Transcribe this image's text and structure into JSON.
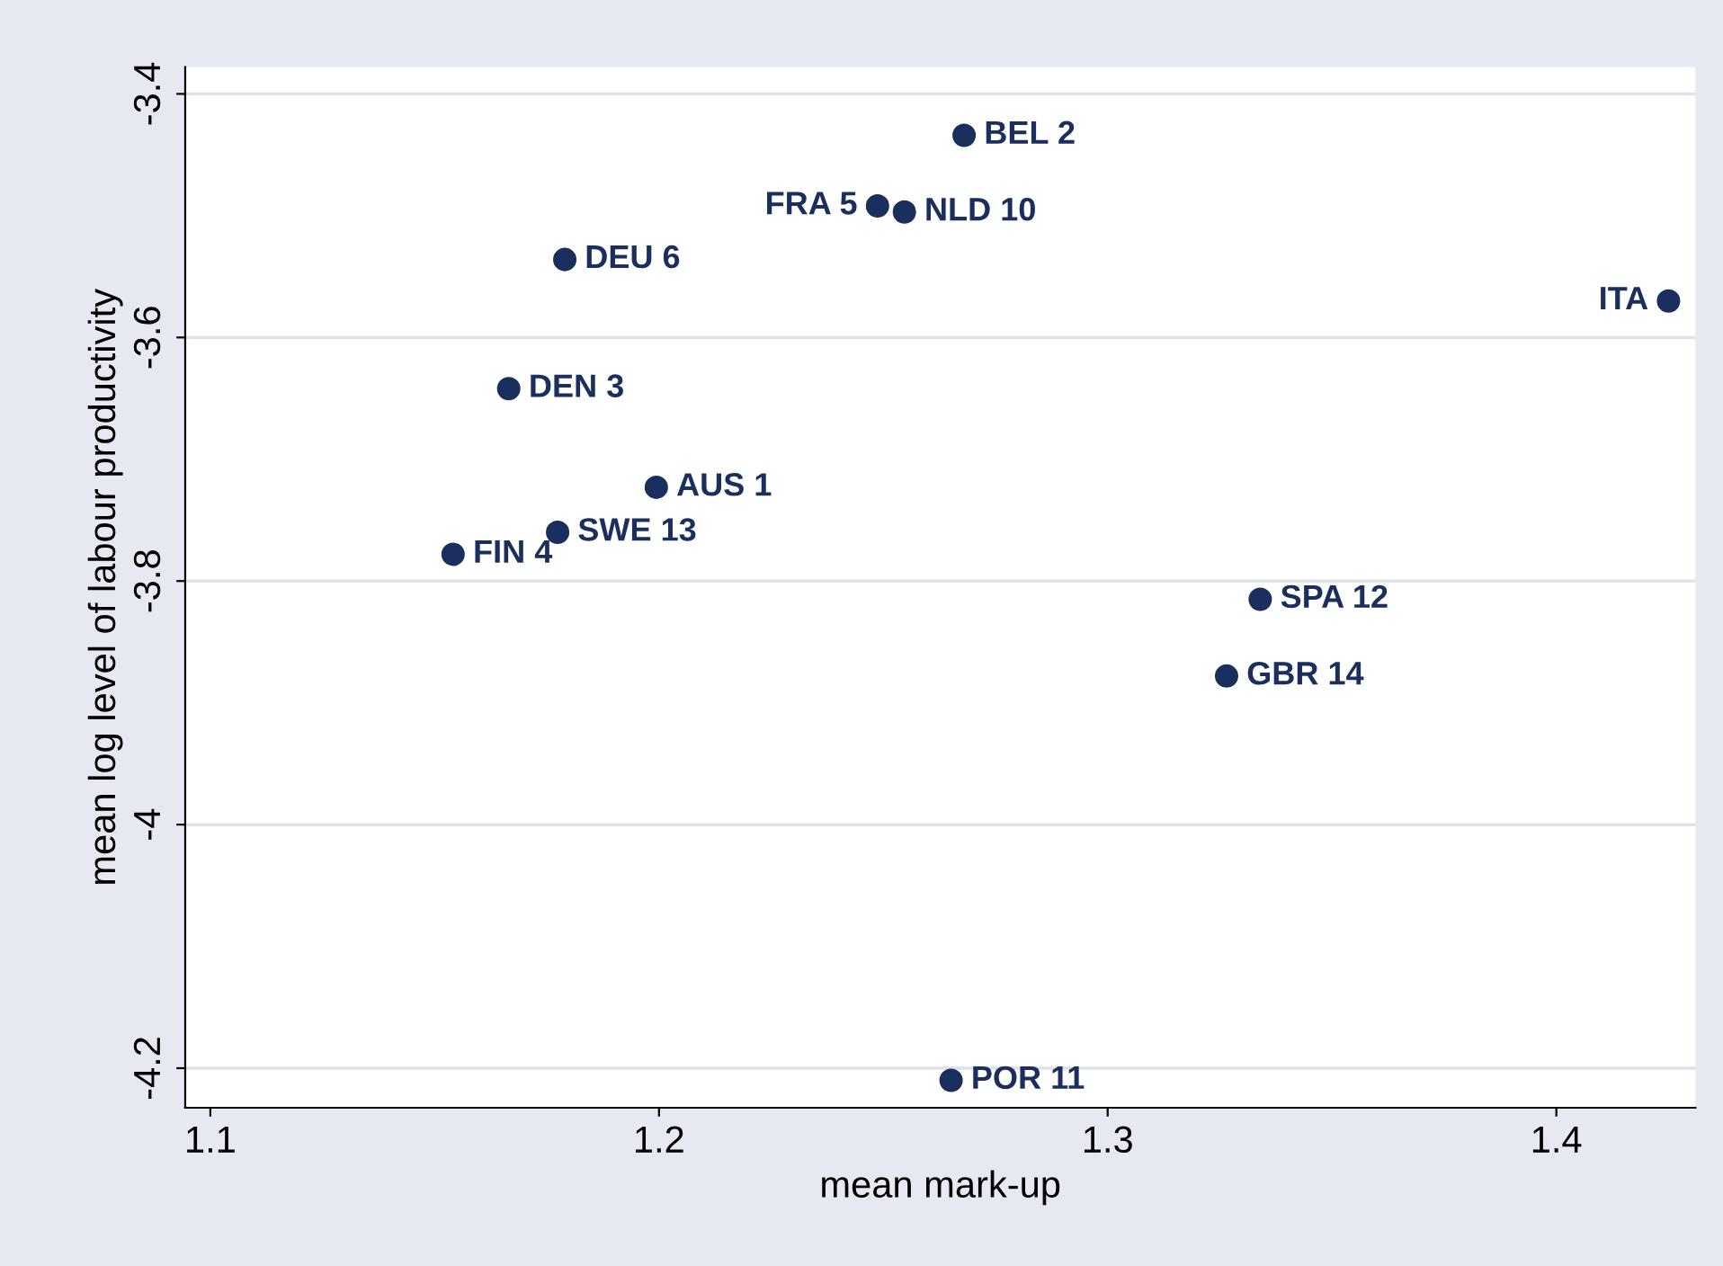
{
  "chart_data": {
    "type": "scatter",
    "xlabel": "mean mark-up",
    "ylabel": "mean log level of labour productivity",
    "x": [
      1.268,
      1.2487,
      1.2547,
      1.179,
      1.425,
      1.1665,
      1.1994,
      1.1774,
      1.1541,
      1.334,
      1.3265,
      1.2651
    ],
    "values": [
      -3.434,
      -3.492,
      -3.497,
      -3.536,
      -3.57,
      -3.642,
      -3.723,
      -3.76,
      -3.778,
      -3.815,
      -3.878,
      -4.21
    ],
    "color": "#1a2f5e",
    "marker": "circle",
    "xlim": [
      1.0944,
      1.431
    ],
    "ylim": [
      -4.2325,
      -3.378
    ],
    "xticks": [
      1.1,
      1.2,
      1.3,
      1.4
    ],
    "yticks": [
      -4.2,
      -4,
      -3.8,
      -3.6,
      -3.4
    ],
    "grid": "y",
    "annotations": [
      {
        "text": "BEL 2",
        "x": 1.268,
        "y": -3.434
      },
      {
        "text": "FRA 5",
        "x": 1.2487,
        "y": -3.492
      },
      {
        "text": "NLD 10",
        "x": 1.2547,
        "y": -3.497
      },
      {
        "text": "DEU 6",
        "x": 1.179,
        "y": -3.536
      },
      {
        "text": "ITA",
        "x": 1.425,
        "y": -3.57
      },
      {
        "text": "DEN 3",
        "x": 1.1665,
        "y": -3.642
      },
      {
        "text": "AUS 1",
        "x": 1.1994,
        "y": -3.723
      },
      {
        "text": "SWE 13",
        "x": 1.1774,
        "y": -3.76
      },
      {
        "text": "FIN 4",
        "x": 1.1541,
        "y": -3.778
      },
      {
        "text": "SPA 12",
        "x": 1.334,
        "y": -3.815
      },
      {
        "text": "GBR 14",
        "x": 1.3265,
        "y": -3.878
      },
      {
        "text": "POR 11",
        "x": 1.2651,
        "y": -4.21
      }
    ]
  }
}
